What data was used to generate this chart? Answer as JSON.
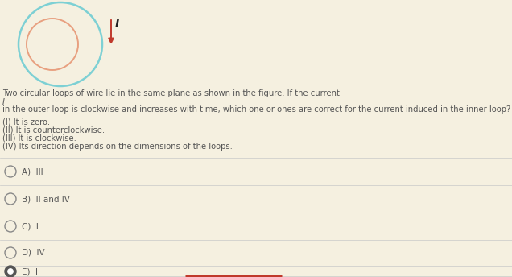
{
  "background_color": "#f5f0e0",
  "outer_circle_color": "#7dd0d4",
  "inner_circle_color": "#e8a080",
  "arrow_color": "#c0392b",
  "text_color": "#555555",
  "dark_text_color": "#333333",
  "title_lines": [
    "Two circular loops of wire lie in the same plane as shown in the figure. If the current",
    "I",
    "in the outer loop is clockwise and increases with time, which one or ones are correct for the current induced in the inner loop?"
  ],
  "options_text": [
    "(I) It is zero.",
    "(II) It is counterclockwise.",
    "(III) It is clockwise.",
    "(IV) Its direction depends on the dimensions of the loops."
  ],
  "answer_choices": [
    "A)  III",
    "B)  II and IV",
    "C)  I",
    "D)  IV",
    "E)  II"
  ],
  "selected_answer_index": 4,
  "question_font_size": 7.2,
  "option_font_size": 7.2,
  "answer_font_size": 7.5,
  "I_font_size": 10
}
